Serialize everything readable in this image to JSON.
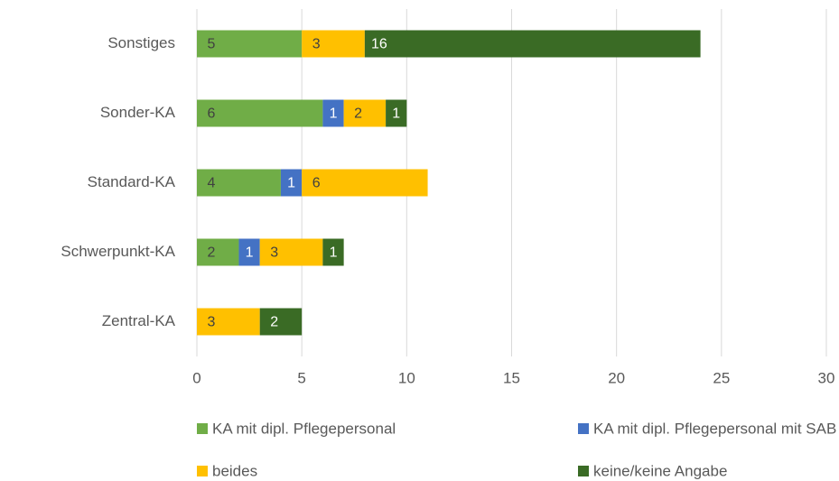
{
  "chart_data": {
    "type": "bar",
    "orientation": "horizontal",
    "stacked": true,
    "categories": [
      "Sonstiges",
      "Sonder-KA",
      "Standard-KA",
      "Schwerpunkt-KA",
      "Zentral-KA"
    ],
    "series": [
      {
        "name": "KA mit dipl. Pflegepersonal",
        "color": "#70ad47",
        "values": [
          5,
          6,
          4,
          2,
          null
        ]
      },
      {
        "name": "KA mit dipl. Pflegepersonal mit SAB",
        "color": "#4472c4",
        "values": [
          null,
          1,
          1,
          1,
          null
        ]
      },
      {
        "name": "beides",
        "color": "#ffc000",
        "values": [
          3,
          2,
          6,
          3,
          3
        ]
      },
      {
        "name": "keine/keine Angabe",
        "color": "#3a6b25",
        "values": [
          16,
          1,
          null,
          1,
          2
        ]
      }
    ],
    "xlim": [
      0,
      30
    ],
    "xticks": [
      0,
      5,
      10,
      15,
      20,
      25,
      30
    ],
    "grid": true,
    "legend": "bottom"
  }
}
